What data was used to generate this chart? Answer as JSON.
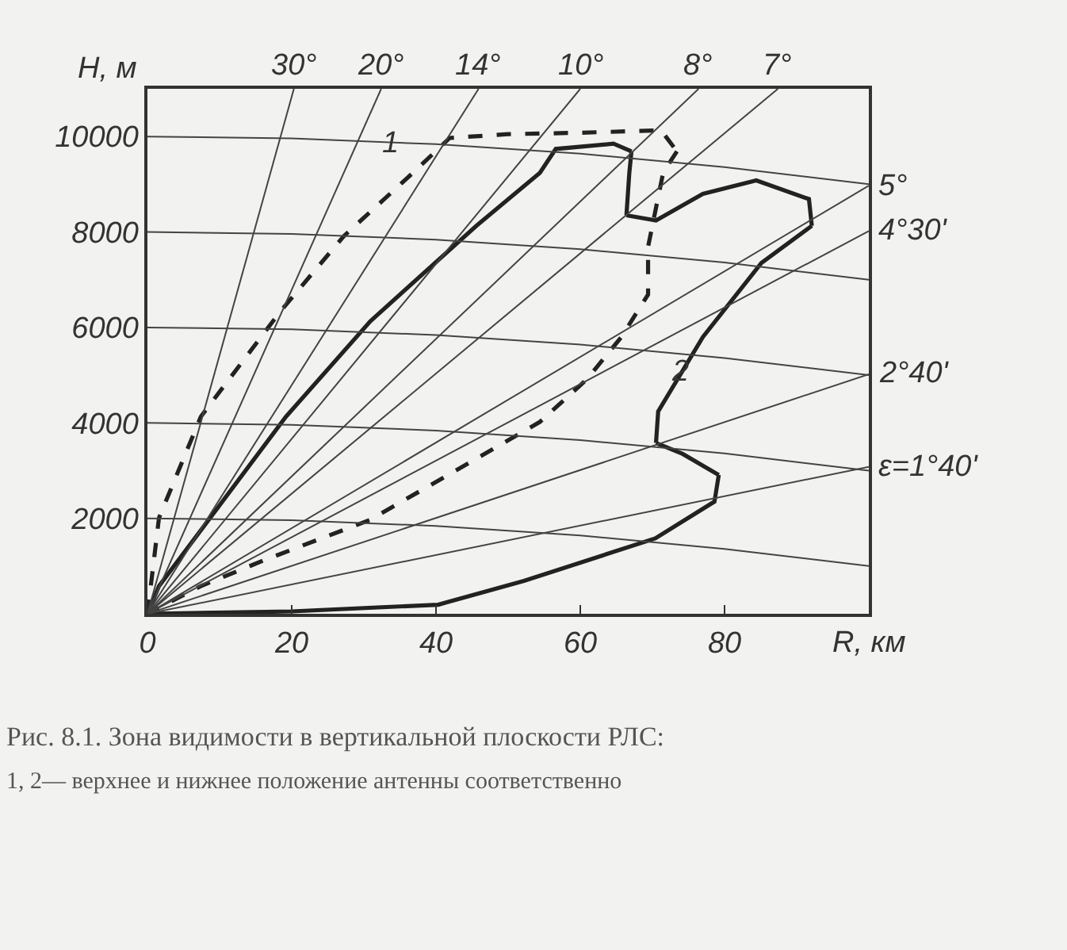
{
  "chart_data": {
    "type": "line",
    "xlabel": "R, км",
    "ylabel": "H, м",
    "xlim": [
      0,
      100
    ],
    "ylim": [
      0,
      11000
    ],
    "xticks": [
      0,
      20,
      40,
      60,
      80
    ],
    "yticks": [
      2000,
      4000,
      6000,
      8000,
      10000
    ],
    "grid": false,
    "legend": false,
    "series": [
      {
        "name": "1",
        "color": "#222222",
        "line_style": "dashed",
        "x": [
          0,
          1.6,
          7.4,
          18.5,
          27.2,
          36.8,
          41.9,
          50,
          60,
          71.2,
          73.4
        ],
        "values": [
          0,
          2010,
          4130,
          6350,
          7910,
          9240,
          9970,
          10050,
          10080,
          10130,
          9690
        ]
      },
      {
        "color": "#222222",
        "line_style": "dashed",
        "x": [
          73.4,
          71.5,
          69.4,
          69.4,
          65.7,
          60.9,
          54.4,
          30.9,
          16.3,
          7.4,
          0
        ],
        "values": [
          9690,
          9250,
          7690,
          6690,
          5800,
          4910,
          4020,
          1970,
          1130,
          580,
          0
        ]
      },
      {
        "color": "#222222",
        "line_style": "solid",
        "x": [
          0,
          20,
          40.3,
          52.2,
          70.4,
          78.6,
          79.2
        ],
        "values": [
          0,
          50,
          190,
          690,
          1580,
          2350,
          2910
        ]
      },
      {
        "color": "#222222",
        "line_style": "solid",
        "x": [
          79.2,
          74.2,
          70.5
        ],
        "values": [
          2910,
          3350,
          3580
        ]
      },
      {
        "name": "2",
        "color": "#222222",
        "line_style": "solid",
        "x": [
          70.5,
          70.8,
          77,
          85.1,
          92.1
        ],
        "values": [
          3580,
          4240,
          5800,
          7350,
          8130
        ]
      },
      {
        "color": "#222222",
        "line_style": "solid",
        "x": [
          92.1,
          91.7,
          84.4,
          77,
          70.5,
          66.4
        ],
        "values": [
          8130,
          8690,
          9080,
          8800,
          8240,
          8350
        ]
      },
      {
        "color": "#222222",
        "line_style": "solid",
        "x": [
          66.4,
          66.8,
          67.1
        ],
        "values": [
          8350,
          9240,
          9690
        ]
      },
      {
        "color": "#222222",
        "line_style": "solid",
        "x": [
          67.1,
          64.6,
          56.6,
          54.4,
          45.6,
          30.9,
          19.2,
          1.6,
          0
        ],
        "values": [
          9690,
          9850,
          9740,
          9240,
          8130,
          6130,
          4130,
          580,
          0
        ]
      },
      {
        "color": "#444444",
        "x": [
          0,
          20,
          40,
          60,
          80,
          100
        ],
        "values": [
          10000,
          9960,
          9840,
          9640,
          9360,
          9000
        ]
      },
      {
        "color": "#444444",
        "x": [
          0,
          20,
          40,
          60,
          80,
          100
        ],
        "values": [
          8000,
          7960,
          7840,
          7640,
          7360,
          7000
        ]
      },
      {
        "color": "#444444",
        "x": [
          0,
          20,
          40,
          60,
          80,
          100
        ],
        "values": [
          6000,
          5960,
          5840,
          5640,
          5360,
          5000
        ]
      },
      {
        "color": "#444444",
        "x": [
          0,
          20,
          40,
          60,
          80,
          100
        ],
        "values": [
          4000,
          3960,
          3840,
          3640,
          3360,
          3000
        ]
      },
      {
        "color": "#444444",
        "x": [
          0,
          20,
          40,
          60,
          80,
          100
        ],
        "values": [
          2000,
          1960,
          1840,
          1640,
          1360,
          1000
        ]
      },
      {
        "name": "30°",
        "color": "#444444",
        "x": [
          0,
          20.3
        ],
        "values": [
          0,
          11000
        ]
      },
      {
        "name": "20°",
        "color": "#444444",
        "x": [
          0,
          32.4
        ],
        "values": [
          0,
          11000
        ]
      },
      {
        "name": "14°",
        "color": "#444444",
        "x": [
          0,
          45.9
        ],
        "values": [
          0,
          11000
        ]
      },
      {
        "name": "10°",
        "color": "#444444",
        "x": [
          0,
          60
        ],
        "values": [
          0,
          11000
        ]
      },
      {
        "name": "8°",
        "color": "#444444",
        "x": [
          0,
          76.4
        ],
        "values": [
          0,
          11000
        ]
      },
      {
        "name": "7°",
        "color": "#444444",
        "x": [
          0,
          87.4
        ],
        "values": [
          0,
          11000
        ]
      },
      {
        "name": "5°",
        "color": "#444444",
        "x": [
          0,
          100
        ],
        "values": [
          0,
          8970
        ]
      },
      {
        "name": "4°30'",
        "color": "#444444",
        "x": [
          0,
          100
        ],
        "values": [
          0,
          8020
        ]
      },
      {
        "name": "2°40'",
        "color": "#444444",
        "x": [
          0,
          100
        ],
        "values": [
          0,
          5020
        ]
      },
      {
        "name": "ε=1°40'",
        "color": "#444444",
        "x": [
          0,
          100
        ],
        "values": [
          0,
          3080
        ]
      }
    ],
    "annotations": [
      "Рис. 8.1. Зона видимости в вертикальной плоскости РЛС:",
      "1, 2— верхнее и нижнее положение антенны соответственно"
    ]
  }
}
